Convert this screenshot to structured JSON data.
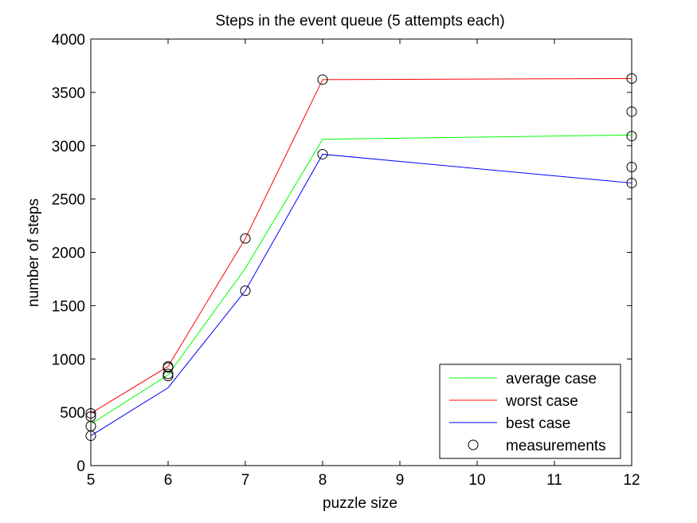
{
  "chart_data": {
    "type": "line",
    "title": "Steps in the event queue (5 attempts each)",
    "xlabel": "puzzle size",
    "ylabel": "number of steps",
    "xlim": [
      5,
      12
    ],
    "ylim": [
      0,
      4000
    ],
    "xticks": [
      5,
      6,
      7,
      8,
      9,
      10,
      11,
      12
    ],
    "yticks": [
      0,
      500,
      1000,
      1500,
      2000,
      2500,
      3000,
      3500,
      4000
    ],
    "grid": false,
    "legend_position": "bottom-right",
    "series": [
      {
        "name": "average case",
        "color": "#00ff00",
        "style": "line",
        "x": [
          5,
          6,
          7,
          8,
          12
        ],
        "y": [
          390,
          850,
          1850,
          3060,
          3100
        ]
      },
      {
        "name": "worst case",
        "color": "#ff0000",
        "style": "line",
        "x": [
          5,
          6,
          7,
          8,
          12
        ],
        "y": [
          490,
          930,
          2130,
          3620,
          3630
        ]
      },
      {
        "name": "best case",
        "color": "#0000ff",
        "style": "line",
        "x": [
          5,
          6,
          7,
          8,
          12
        ],
        "y": [
          280,
          730,
          1640,
          2920,
          2650
        ]
      },
      {
        "name": "measurements",
        "color": "#000000",
        "style": "marker",
        "x": [
          5,
          5,
          5,
          5,
          6,
          6,
          6,
          6,
          7,
          7,
          8,
          8,
          12,
          12,
          12,
          12,
          12
        ],
        "y": [
          490,
          460,
          370,
          280,
          930,
          920,
          860,
          840,
          2130,
          1640,
          3620,
          2920,
          3630,
          3320,
          3090,
          2800,
          2650
        ]
      }
    ]
  }
}
